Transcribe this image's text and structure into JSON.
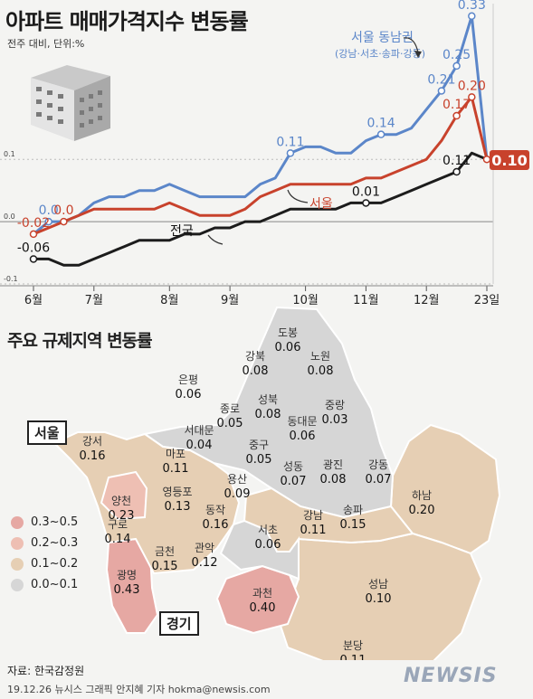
{
  "header": {
    "title": "아파트 매매가격지수 변동률",
    "subtitle": "전주 대비, 단위:%"
  },
  "chart_data": {
    "type": "line",
    "y_ticks": [
      "0.1",
      "0.0",
      "-0.1"
    ],
    "x_labels": [
      "6월",
      "7월",
      "8월",
      "9월",
      "10월",
      "11월",
      "12월",
      "23일"
    ],
    "ylim": [
      -0.1,
      0.35
    ],
    "series": [
      {
        "name": "서울 동남권",
        "name_sub": "(강남·서초·송파·강동)",
        "color": "#5b86c9",
        "values": [
          -0.02,
          0.0,
          0.0,
          0.01,
          0.03,
          0.04,
          0.04,
          0.05,
          0.05,
          0.06,
          0.05,
          0.04,
          0.04,
          0.04,
          0.04,
          0.06,
          0.07,
          0.11,
          0.12,
          0.12,
          0.11,
          0.11,
          0.13,
          0.14,
          0.14,
          0.15,
          0.18,
          0.21,
          0.25,
          0.33,
          0.1
        ],
        "labels": {
          "1": "0.0",
          "17": "0.11",
          "23": "0.14",
          "27": "0.21",
          "28": "0.25",
          "29": "0.33"
        }
      },
      {
        "name": "서울",
        "color": "#c8422c",
        "values": [
          -0.02,
          -0.01,
          0.0,
          0.01,
          0.02,
          0.02,
          0.02,
          0.02,
          0.02,
          0.03,
          0.02,
          0.01,
          0.01,
          0.01,
          0.02,
          0.04,
          0.05,
          0.06,
          0.06,
          0.06,
          0.06,
          0.06,
          0.07,
          0.07,
          0.08,
          0.09,
          0.1,
          0.13,
          0.17,
          0.2,
          0.1
        ],
        "labels": {
          "0": "-0.02",
          "2": "0.0",
          "28": "0.17",
          "29": "0.20"
        }
      },
      {
        "name": "전국",
        "color": "#1c1c1c",
        "values": [
          -0.06,
          -0.06,
          -0.07,
          -0.07,
          -0.06,
          -0.05,
          -0.04,
          -0.03,
          -0.03,
          -0.03,
          -0.02,
          -0.02,
          -0.01,
          -0.01,
          0.0,
          0.0,
          0.01,
          0.02,
          0.02,
          0.02,
          0.02,
          0.03,
          0.03,
          0.03,
          0.04,
          0.05,
          0.06,
          0.07,
          0.08,
          0.11,
          0.1
        ],
        "labels": {
          "0": "-0.06",
          "22": "0.01",
          "28": "0.11"
        }
      }
    ],
    "last_value_label": "0.10"
  },
  "map": {
    "title": "주요 규제지역 변동률",
    "seoul_label": "서울",
    "gyeonggi_label": "경기",
    "colors": {
      "r1": "#e6a8a3",
      "r2": "#eebfb3",
      "r3": "#e6cfb4",
      "r4": "#d6d6d6"
    },
    "legend": [
      {
        "label": "0.3~0.5",
        "color": "#e6a8a3"
      },
      {
        "label": "0.2~0.3",
        "color": "#eebfb3"
      },
      {
        "label": "0.1~0.2",
        "color": "#e6cfb4"
      },
      {
        "label": "0.0~0.1",
        "color": "#d6d6d6"
      }
    ],
    "districts": [
      {
        "name": "도봉",
        "value": "0.06"
      },
      {
        "name": "강북",
        "value": "0.08"
      },
      {
        "name": "노원",
        "value": "0.08"
      },
      {
        "name": "은평",
        "value": "0.06"
      },
      {
        "name": "성북",
        "value": "0.08"
      },
      {
        "name": "종로",
        "value": "0.05"
      },
      {
        "name": "중랑",
        "value": "0.03"
      },
      {
        "name": "서대문",
        "value": "0.04"
      },
      {
        "name": "동대문",
        "value": "0.06"
      },
      {
        "name": "강서",
        "value": "0.16"
      },
      {
        "name": "마포",
        "value": "0.11"
      },
      {
        "name": "중구",
        "value": "0.05"
      },
      {
        "name": "성동",
        "value": "0.07"
      },
      {
        "name": "광진",
        "value": "0.08"
      },
      {
        "name": "강동",
        "value": "0.07"
      },
      {
        "name": "용산",
        "value": "0.09"
      },
      {
        "name": "양천",
        "value": "0.23"
      },
      {
        "name": "영등포",
        "value": "0.13"
      },
      {
        "name": "동작",
        "value": "0.16"
      },
      {
        "name": "하남",
        "value": "0.20"
      },
      {
        "name": "구로",
        "value": "0.14"
      },
      {
        "name": "강남",
        "value": "0.11"
      },
      {
        "name": "송파",
        "value": "0.15"
      },
      {
        "name": "금천",
        "value": "0.15"
      },
      {
        "name": "관악",
        "value": "0.12"
      },
      {
        "name": "서초",
        "value": "0.06"
      },
      {
        "name": "광명",
        "value": "0.43"
      },
      {
        "name": "과천",
        "value": "0.40"
      },
      {
        "name": "성남",
        "value": "0.10"
      },
      {
        "name": "분당",
        "value": "0.11"
      }
    ]
  },
  "footer": {
    "source": "자료: 한국감정원",
    "credit": "19.12.26   뉴시스 그래픽 안지혜 기자 hokma@newsis.com",
    "logo": "NEWSIS"
  }
}
